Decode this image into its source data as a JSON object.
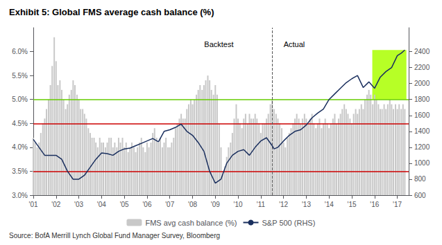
{
  "chart_data": {
    "type": "bar",
    "title": "Exhibit 5: Global FMS average cash balance (%)",
    "source": "Source: BofA Merrill Lynch Global Fund Manager Survey, Bloomberg",
    "xlim": [
      2001.0,
      2017.5
    ],
    "xticks": [
      {
        "value": 2001,
        "label": "'01"
      },
      {
        "value": 2002,
        "label": "'02"
      },
      {
        "value": 2003,
        "label": "'03"
      },
      {
        "value": 2004,
        "label": "'04"
      },
      {
        "value": 2005,
        "label": "'05"
      },
      {
        "value": 2006,
        "label": "'06"
      },
      {
        "value": 2007,
        "label": "'07"
      },
      {
        "value": 2008,
        "label": "'08"
      },
      {
        "value": 2009,
        "label": "'09"
      },
      {
        "value": 2010,
        "label": "'10"
      },
      {
        "value": 2011,
        "label": "'11"
      },
      {
        "value": 2012,
        "label": "'12"
      },
      {
        "value": 2013,
        "label": "'13"
      },
      {
        "value": 2014,
        "label": "'14"
      },
      {
        "value": 2015,
        "label": "'15"
      },
      {
        "value": 2016,
        "label": "'16"
      },
      {
        "value": 2017,
        "label": "'17"
      }
    ],
    "ylim": [
      3.0,
      6.5
    ],
    "yticks": [
      {
        "value": 3.0,
        "label": "3.0%"
      },
      {
        "value": 3.5,
        "label": "3.5%"
      },
      {
        "value": 4.0,
        "label": "4.0%"
      },
      {
        "value": 4.5,
        "label": "4.5%"
      },
      {
        "value": 5.0,
        "label": "5.0%"
      },
      {
        "value": 5.5,
        "label": "5.5%"
      },
      {
        "value": 6.0,
        "label": "6.0%"
      }
    ],
    "y2lim": [
      600,
      2700
    ],
    "y2ticks": [
      600,
      800,
      1000,
      1200,
      1400,
      1600,
      1800,
      2000,
      2200,
      2400
    ],
    "grid": false,
    "legend": "bottom",
    "reference_lines": [
      {
        "value": 5.0,
        "color": "#66cc00"
      },
      {
        "value": 4.5,
        "color": "#cc0000"
      },
      {
        "value": 3.5,
        "color": "#cc0000"
      }
    ],
    "vline": {
      "value": 2011.5,
      "line_style": "dashed"
    },
    "annotations": [
      {
        "text": "Backtest",
        "x": 2009.8,
        "y": 6.15
      },
      {
        "text": "Actual",
        "x": 2012.0,
        "y": 6.15
      }
    ],
    "highlight_box": {
      "x": [
        2015.9,
        2017.4
      ],
      "y": [
        1800,
        2420
      ],
      "axis": "y2",
      "color": "#aaff00"
    },
    "series": [
      {
        "name": "FMS avg cash balance (%)",
        "type": "bar",
        "color": "#c8c8c8",
        "x": [
          2001.0,
          2001.08,
          2001.17,
          2001.25,
          2001.33,
          2001.42,
          2001.5,
          2001.58,
          2001.67,
          2001.75,
          2001.83,
          2001.92,
          2002.0,
          2002.08,
          2002.17,
          2002.25,
          2002.33,
          2002.42,
          2002.5,
          2002.58,
          2002.67,
          2002.75,
          2002.83,
          2002.92,
          2003.0,
          2003.08,
          2003.17,
          2003.25,
          2003.33,
          2003.42,
          2003.5,
          2003.58,
          2003.67,
          2003.75,
          2003.83,
          2003.92,
          2004.0,
          2004.08,
          2004.17,
          2004.25,
          2004.33,
          2004.42,
          2004.5,
          2004.58,
          2004.67,
          2004.75,
          2004.83,
          2004.92,
          2005.0,
          2005.08,
          2005.17,
          2005.25,
          2005.33,
          2005.42,
          2005.5,
          2005.58,
          2005.67,
          2005.75,
          2005.83,
          2005.92,
          2006.0,
          2006.08,
          2006.17,
          2006.25,
          2006.33,
          2006.42,
          2006.5,
          2006.58,
          2006.67,
          2006.75,
          2006.83,
          2006.92,
          2007.0,
          2007.08,
          2007.17,
          2007.25,
          2007.33,
          2007.42,
          2007.5,
          2007.58,
          2007.67,
          2007.75,
          2007.83,
          2007.92,
          2008.0,
          2008.08,
          2008.17,
          2008.25,
          2008.33,
          2008.42,
          2008.5,
          2008.58,
          2008.67,
          2008.75,
          2008.83,
          2008.92,
          2009.0,
          2009.08,
          2009.17,
          2009.25,
          2009.33,
          2009.42,
          2009.5,
          2009.58,
          2009.67,
          2009.75,
          2009.83,
          2009.92,
          2010.0,
          2010.08,
          2010.17,
          2010.25,
          2010.33,
          2010.42,
          2010.5,
          2010.58,
          2010.67,
          2010.75,
          2010.83,
          2010.92,
          2011.0,
          2011.08,
          2011.17,
          2011.25,
          2011.33,
          2011.42,
          2011.5,
          2011.58,
          2011.67,
          2011.75,
          2011.83,
          2011.92,
          2012.0,
          2012.08,
          2012.17,
          2012.25,
          2012.33,
          2012.42,
          2012.5,
          2012.58,
          2012.67,
          2012.75,
          2012.83,
          2012.92,
          2013.0,
          2013.08,
          2013.17,
          2013.25,
          2013.33,
          2013.42,
          2013.5,
          2013.58,
          2013.67,
          2013.75,
          2013.83,
          2013.92,
          2014.0,
          2014.08,
          2014.17,
          2014.25,
          2014.33,
          2014.42,
          2014.5,
          2014.58,
          2014.67,
          2014.75,
          2014.83,
          2014.92,
          2015.0,
          2015.08,
          2015.17,
          2015.25,
          2015.33,
          2015.42,
          2015.5,
          2015.58,
          2015.67,
          2015.75,
          2015.83,
          2015.92,
          2016.0,
          2016.08,
          2016.17,
          2016.25,
          2016.33,
          2016.42,
          2016.5,
          2016.58,
          2016.67,
          2016.75,
          2016.83,
          2016.92,
          2017.0,
          2017.08,
          2017.17,
          2017.25,
          2017.33
        ],
        "values": [
          4.2,
          4.1,
          4.0,
          4.1,
          4.3,
          4.5,
          4.6,
          4.8,
          5.0,
          5.3,
          5.7,
          6.3,
          5.8,
          5.3,
          5.4,
          5.2,
          5.0,
          4.8,
          4.9,
          5.1,
          5.2,
          5.4,
          5.3,
          5.1,
          5.0,
          4.8,
          4.8,
          4.7,
          4.6,
          4.4,
          4.3,
          4.2,
          4.2,
          4.1,
          4.0,
          4.2,
          4.1,
          4.1,
          4.0,
          4.1,
          4.2,
          4.2,
          4.0,
          4.1,
          4.0,
          4.2,
          4.1,
          4.2,
          4.0,
          4.1,
          3.9,
          4.0,
          4.1,
          4.0,
          3.9,
          4.0,
          4.1,
          4.2,
          4.0,
          3.9,
          4.1,
          4.0,
          4.1,
          4.3,
          4.4,
          4.2,
          4.1,
          4.2,
          4.0,
          4.1,
          4.2,
          4.0,
          4.0,
          4.1,
          4.2,
          4.4,
          4.5,
          4.6,
          4.7,
          4.6,
          4.6,
          4.8,
          4.9,
          5.0,
          4.9,
          5.0,
          5.1,
          5.2,
          5.3,
          5.2,
          5.3,
          5.4,
          5.5,
          5.4,
          5.2,
          5.1,
          5.3,
          5.1,
          4.5,
          4.0,
          3.5,
          3.6,
          3.8,
          4.0,
          4.1,
          4.3,
          4.6,
          4.9,
          4.6,
          4.5,
          4.4,
          4.6,
          4.7,
          4.5,
          4.7,
          4.6,
          4.6,
          4.7,
          4.6,
          4.5,
          4.3,
          4.5,
          4.5,
          4.6,
          4.7,
          4.9,
          5.0,
          4.8,
          4.7,
          4.6,
          4.5,
          4.4,
          4.1,
          4.0,
          4.2,
          4.3,
          4.4,
          4.5,
          4.6,
          4.7,
          4.6,
          4.5,
          4.6,
          4.7,
          4.6,
          4.5,
          4.6,
          4.7,
          4.5,
          4.4,
          4.5,
          4.6,
          4.4,
          4.5,
          4.6,
          4.5,
          4.4,
          4.5,
          4.6,
          4.7,
          4.5,
          4.6,
          4.7,
          4.8,
          4.9,
          4.8,
          4.7,
          4.6,
          4.5,
          4.7,
          4.8,
          4.7,
          4.8,
          4.9,
          4.8,
          5.0,
          5.1,
          5.2,
          5.1,
          4.9,
          5.1,
          5.0,
          4.9,
          4.8,
          4.8,
          4.9,
          4.8,
          4.9,
          5.0,
          4.9,
          4.8,
          4.9,
          4.8,
          4.9,
          4.8,
          4.9,
          4.8
        ]
      },
      {
        "name": "S&P 500 (RHS)",
        "type": "line",
        "color": "#1a2f5e",
        "axis": "y2",
        "x": [
          2001.0,
          2001.25,
          2001.5,
          2001.75,
          2002.0,
          2002.25,
          2002.5,
          2002.75,
          2003.0,
          2003.25,
          2003.5,
          2003.75,
          2004.0,
          2004.25,
          2004.5,
          2004.75,
          2005.0,
          2005.25,
          2005.5,
          2005.75,
          2006.0,
          2006.25,
          2006.5,
          2006.75,
          2007.0,
          2007.25,
          2007.5,
          2007.75,
          2008.0,
          2008.25,
          2008.5,
          2008.75,
          2009.0,
          2009.25,
          2009.5,
          2009.75,
          2010.0,
          2010.25,
          2010.5,
          2010.75,
          2011.0,
          2011.25,
          2011.5,
          2011.58,
          2011.75,
          2012.0,
          2012.25,
          2012.5,
          2012.75,
          2013.0,
          2013.25,
          2013.5,
          2013.75,
          2014.0,
          2014.25,
          2014.5,
          2014.75,
          2015.0,
          2015.25,
          2015.5,
          2015.75,
          2016.0,
          2016.25,
          2016.5,
          2016.75,
          2017.0,
          2017.17,
          2017.33
        ],
        "values": [
          1300,
          1200,
          1100,
          1100,
          1100,
          1050,
          900,
          800,
          800,
          850,
          950,
          1050,
          1130,
          1120,
          1100,
          1150,
          1180,
          1190,
          1220,
          1250,
          1280,
          1310,
          1270,
          1400,
          1420,
          1450,
          1490,
          1400,
          1350,
          1260,
          1150,
          900,
          750,
          800,
          1000,
          1100,
          1150,
          1170,
          1100,
          1200,
          1280,
          1320,
          1220,
          1180,
          1200,
          1280,
          1350,
          1400,
          1420,
          1480,
          1570,
          1630,
          1680,
          1800,
          1870,
          1940,
          2010,
          2060,
          2100,
          1950,
          2020,
          1940,
          2080,
          2150,
          2200,
          2350,
          2380,
          2420
        ]
      }
    ]
  }
}
